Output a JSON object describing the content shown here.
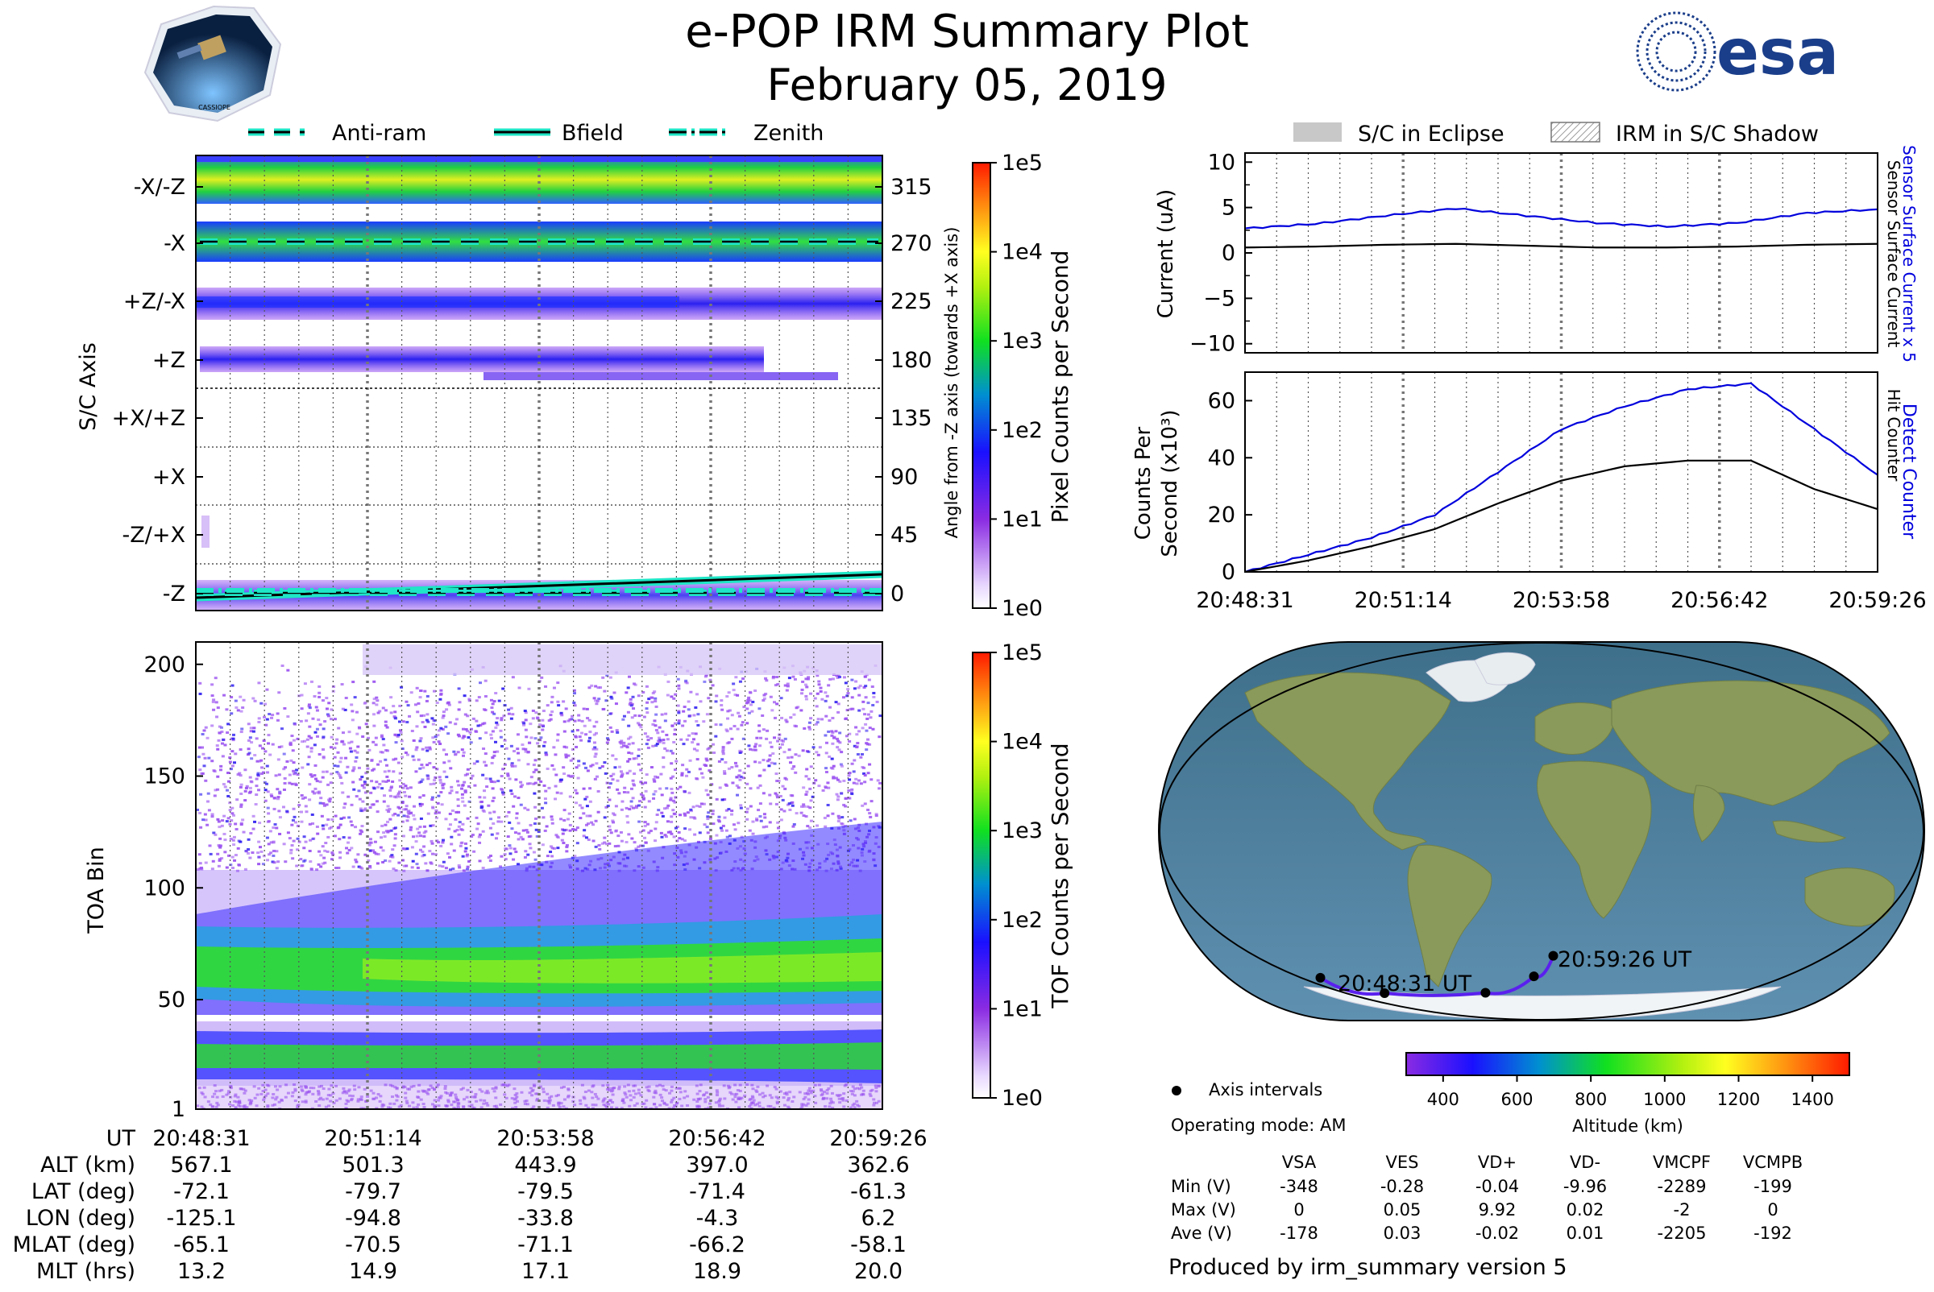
{
  "title": "e-POP IRM Summary Plot",
  "date": "February 05, 2019",
  "logos": {
    "left": "CASSIOPE",
    "right": "esa"
  },
  "top_legend": [
    "Anti-ram",
    "Bfield",
    "Zenith"
  ],
  "right_legend": [
    "S/C in Eclipse",
    "IRM in S/C Shadow"
  ],
  "time_ticks": [
    "20:48:31",
    "20:51:14",
    "20:53:58",
    "20:56:42",
    "20:59:26"
  ],
  "colors": {
    "cyan": "#1ee6c6",
    "blue_line": "#0000dd",
    "axis": "#000000"
  },
  "chart_data": [
    {
      "name": "sc-axis-panel",
      "type": "heatmap",
      "ylabel": "S/C Axis",
      "yticks_left": [
        "-X/-Z",
        "-X",
        "+Z/-X",
        "+Z",
        "+X/+Z",
        "+X",
        "-Z/+X",
        "-Z"
      ],
      "yticks_right": [
        "315",
        "270",
        "225",
        "180",
        "135",
        "90",
        "45",
        "0"
      ],
      "ylabel_right": "Angle from -Z axis (towards +X axis)",
      "colorbar": {
        "label": "Pixel Counts per Second",
        "ticks": [
          "1e0",
          "1e1",
          "1e2",
          "1e3",
          "1e4",
          "1e5"
        ]
      },
      "lines": {
        "bfield": [
          9,
          15
        ],
        "antiram": [
          0,
          0
        ],
        "zenith": [
          0,
          0
        ]
      }
    },
    {
      "name": "toa-panel",
      "type": "heatmap",
      "ylabel": "TOA Bin",
      "yticks": [
        "1",
        "50",
        "100",
        "150",
        "200"
      ],
      "ylim": [
        1,
        210
      ],
      "colorbar": {
        "label": "TOF Counts per Second",
        "ticks": [
          "1e0",
          "1e1",
          "1e2",
          "1e3",
          "1e4",
          "1e5"
        ]
      }
    },
    {
      "name": "current-panel",
      "type": "line",
      "ylabel": "Current (uA)",
      "yticks": [
        "10",
        "5",
        "0",
        "−5",
        "−10"
      ],
      "ylim": [
        -11,
        11
      ],
      "right_labels": [
        "Sensor Surface Current x 5",
        "Sensor Surface Current"
      ],
      "series": [
        {
          "name": "Sensor Surface Current x 5",
          "values": [
            2.7,
            3.2,
            4.1,
            4.9,
            4.1,
            3.3,
            2.9,
            3.3,
            4.4,
            4.8
          ]
        },
        {
          "name": "Sensor Surface Current",
          "values": [
            0.6,
            0.7,
            0.9,
            1.0,
            0.8,
            0.6,
            0.6,
            0.7,
            0.9,
            1.0
          ]
        }
      ]
    },
    {
      "name": "counts-panel",
      "type": "line",
      "ylabel": "Counts Per",
      "ylabel2": "Second (x10³)",
      "yticks": [
        "60",
        "40",
        "20",
        "0"
      ],
      "ylim": [
        0,
        70
      ],
      "right_labels": [
        "Detect Counter",
        "Hit Counter"
      ],
      "series": [
        {
          "name": "Detect Counter",
          "values": [
            0,
            6,
            12,
            20,
            35,
            50,
            58,
            64,
            66,
            50,
            34
          ]
        },
        {
          "name": "Hit Counter",
          "values": [
            0,
            4,
            9,
            15,
            24,
            32,
            37,
            39,
            39,
            29,
            22
          ]
        }
      ]
    },
    {
      "name": "orbit-map",
      "type": "map",
      "label_start": "20:48:31 UT",
      "label_end": "20:59:26 UT",
      "track_lon": [
        -125.1,
        -94.8,
        -33.8,
        -4.3,
        6.2
      ],
      "track_lat": [
        -72.1,
        -79.7,
        -79.5,
        -71.4,
        -61.3
      ],
      "colorbar": {
        "label": "Altitude (km)",
        "ticks": [
          "400",
          "600",
          "800",
          "1000",
          "1200",
          "1400"
        ]
      }
    }
  ],
  "ut_table": {
    "rows": [
      {
        "label": "UT",
        "values": [
          "20:48:31",
          "20:51:14",
          "20:53:58",
          "20:56:42",
          "20:59:26"
        ]
      },
      {
        "label": "ALT (km)",
        "values": [
          "567.1",
          "501.3",
          "443.9",
          "397.0",
          "362.6"
        ]
      },
      {
        "label": "LAT (deg)",
        "values": [
          "-72.1",
          "-79.7",
          "-79.5",
          "-71.4",
          "-61.3"
        ]
      },
      {
        "label": "LON (deg)",
        "values": [
          "-125.1",
          "-94.8",
          "-33.8",
          "-4.3",
          "6.2"
        ]
      },
      {
        "label": "MLAT (deg)",
        "values": [
          "-65.1",
          "-70.5",
          "-71.1",
          "-66.2",
          "-58.1"
        ]
      },
      {
        "label": "MLT (hrs)",
        "values": [
          "13.2",
          "14.9",
          "17.1",
          "18.9",
          "20.0"
        ]
      }
    ]
  },
  "info": {
    "axis_intervals": "Axis intervals",
    "operating_mode": "Operating mode: AM"
  },
  "voltage_table": {
    "headers": [
      "VSA",
      "VES",
      "VD+",
      "VD-",
      "VMCPF",
      "VCMPB"
    ],
    "rows": [
      {
        "label": "Min (V)",
        "values": [
          "-348",
          "-0.28",
          "-0.04",
          "-9.96",
          "-2289",
          "-199"
        ]
      },
      {
        "label": "Max (V)",
        "values": [
          "0",
          "0.05",
          "9.92",
          "0.02",
          "-2",
          "0"
        ]
      },
      {
        "label": "Ave (V)",
        "values": [
          "-178",
          "0.03",
          "-0.02",
          "0.01",
          "-2205",
          "-192"
        ]
      }
    ]
  },
  "footer": "Produced by irm_summary version 5"
}
